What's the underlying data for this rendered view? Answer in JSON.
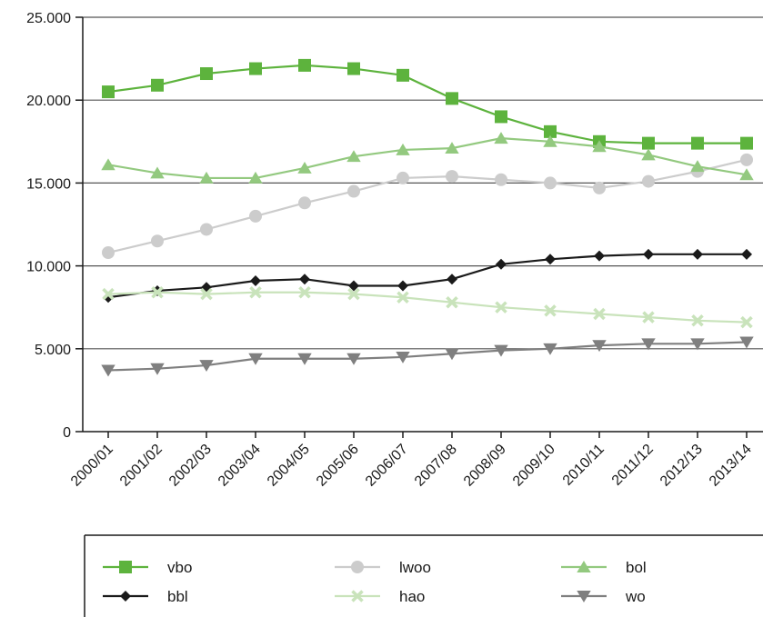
{
  "chart_data": {
    "type": "line",
    "title": "",
    "xlabel": "",
    "ylabel": "",
    "ylim": [
      0,
      25000
    ],
    "grid": "horizontal",
    "legend_position": "bottom",
    "y_ticks": [
      {
        "value": 0,
        "label": "0"
      },
      {
        "value": 5000,
        "label": "5.000"
      },
      {
        "value": 10000,
        "label": "10.000"
      },
      {
        "value": 15000,
        "label": "15.000"
      },
      {
        "value": 20000,
        "label": "20.000"
      },
      {
        "value": 25000,
        "label": "25.000"
      }
    ],
    "categories": [
      "2000/01",
      "2001/02",
      "2002/03",
      "2003/04",
      "2004/05",
      "2005/06",
      "2006/07",
      "2007/08",
      "2008/09",
      "2009/10",
      "2010/11",
      "2011/12",
      "2012/13",
      "2013/14"
    ],
    "series": [
      {
        "name": "vbo",
        "color": "#5db33d",
        "marker": "square",
        "values": [
          20500,
          20900,
          21600,
          21900,
          22100,
          21900,
          21500,
          20100,
          19000,
          18100,
          17500,
          17400,
          17400,
          17400
        ]
      },
      {
        "name": "lwoo",
        "color": "#cccccc",
        "marker": "circle",
        "values": [
          10800,
          11500,
          12200,
          13000,
          13800,
          14500,
          15300,
          15400,
          15200,
          15000,
          14700,
          15100,
          15700,
          16400
        ]
      },
      {
        "name": "bol",
        "color": "#93c97f",
        "marker": "triangle-up",
        "values": [
          16100,
          15600,
          15300,
          15300,
          15900,
          16600,
          17000,
          17100,
          17700,
          17500,
          17200,
          16700,
          16000,
          15500
        ]
      },
      {
        "name": "bbl",
        "color": "#1a1a1a",
        "marker": "diamond",
        "values": [
          8100,
          8500,
          8700,
          9100,
          9200,
          8800,
          8800,
          9200,
          10100,
          10400,
          10600,
          10700,
          10700,
          10700
        ]
      },
      {
        "name": "hao",
        "color": "#c9e3bb",
        "marker": "x",
        "values": [
          8300,
          8400,
          8300,
          8400,
          8400,
          8300,
          8100,
          7800,
          7500,
          7300,
          7100,
          6900,
          6700,
          6600
        ]
      },
      {
        "name": "wo",
        "color": "#7f7f7f",
        "marker": "triangle-down",
        "values": [
          3700,
          3800,
          4000,
          4400,
          4400,
          4400,
          4500,
          4700,
          4900,
          5000,
          5200,
          5300,
          5300,
          5400
        ]
      }
    ]
  }
}
